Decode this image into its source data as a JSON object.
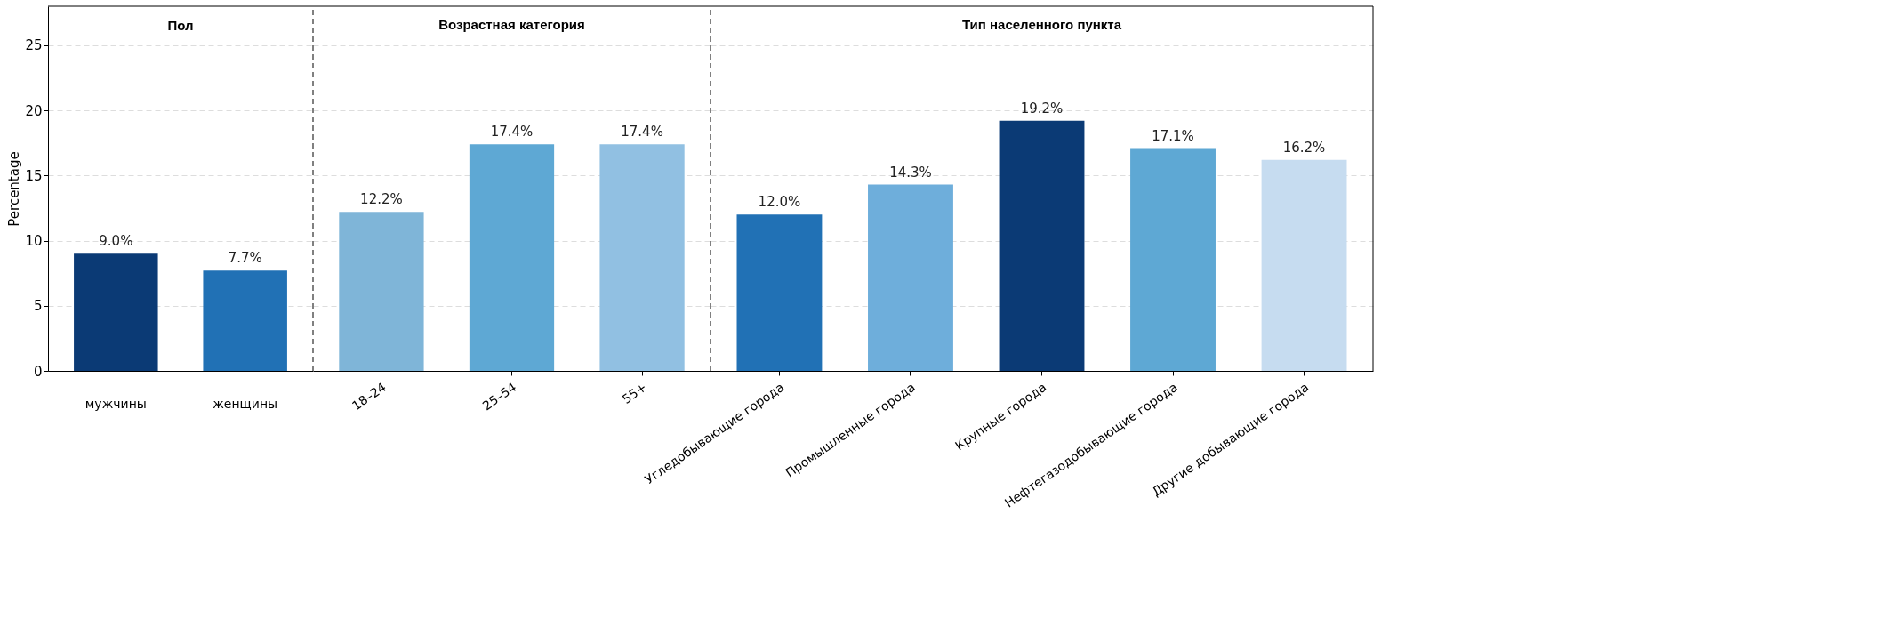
{
  "chart_data": [
    {
      "type": "bar",
      "title": "Пол",
      "ylabel": "Percentage",
      "categories": [
        "мужчины",
        "женщины"
      ],
      "values": [
        9.0,
        7.7
      ],
      "colors": [
        "#0b3a75",
        "#2171b5"
      ],
      "value_labels": [
        "9.0%",
        "7.7%"
      ],
      "ylim": [
        0,
        28
      ],
      "yticks": [
        0,
        5,
        10,
        15,
        20,
        25
      ],
      "grid": "y"
    },
    {
      "type": "bar",
      "title": "Возрастная категория",
      "categories": [
        "18–24",
        "25–54",
        "55+"
      ],
      "values": [
        12.2,
        17.4,
        17.4
      ],
      "colors": [
        "#7fb5d8",
        "#5ea8d4",
        "#91c0e2"
      ],
      "value_labels": [
        "12.2%",
        "17.4%",
        "17.4%"
      ],
      "ylim": [
        0,
        28
      ],
      "yticks": [
        0,
        5,
        10,
        15,
        20,
        25
      ],
      "grid": "y",
      "tick_labels": "x"
    },
    {
      "type": "bar",
      "title": "Тип населенного пункта",
      "categories": [
        "Угледобывающие города",
        "Промышленные города",
        "Крупные города",
        "Нефтегазодобывающие города",
        "Другие добывающие города"
      ],
      "values": [
        12.0,
        14.3,
        19.2,
        17.1,
        16.2
      ],
      "colors": [
        "#2171b5",
        "#6eaedb",
        "#0b3a75",
        "#5ea8d4",
        "#c6dcf0"
      ],
      "value_labels": [
        "12.0%",
        "14.3%",
        "19.2%",
        "17.1%",
        "16.2%"
      ],
      "ylim": [
        0,
        28
      ],
      "yticks": [
        0,
        5,
        10,
        15,
        20,
        25
      ],
      "grid": "y",
      "tick_labels": "x"
    }
  ]
}
